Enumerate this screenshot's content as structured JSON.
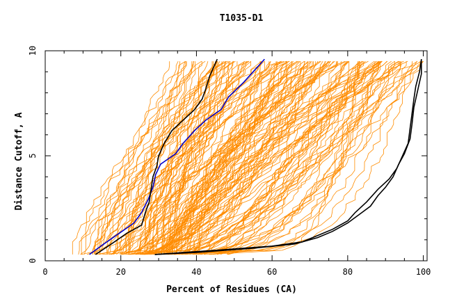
{
  "chart_data": {
    "type": "line",
    "title": "T1035-D1",
    "xlabel": "Percent of Residues (CA)",
    "ylabel": "Distance Cutoff, A",
    "xlim": [
      0,
      101
    ],
    "ylim": [
      0,
      10
    ],
    "x_ticks": [
      0,
      20,
      40,
      60,
      80,
      100
    ],
    "y_ticks": [
      0,
      5,
      10
    ],
    "grid": false,
    "legend": "none",
    "background_series": {
      "name": "",
      "color": "#ff8c00",
      "count": 160,
      "description_values": "GDT curves of all models spanning x from about 5 to 100 and y from 0.3 to 9.6"
    },
    "series": [
      {
        "name": "",
        "color": "#0000cc",
        "x": [
          11.7,
          15.5,
          19.5,
          23.5,
          25.5,
          27.2,
          28.5,
          29.2,
          30.5,
          34.5,
          36.5,
          39.5,
          42.5,
          46.5,
          48.5,
          52.5,
          55.5,
          58.0
        ],
        "y": [
          0.3,
          0.8,
          1.3,
          1.8,
          2.3,
          2.9,
          3.5,
          4.1,
          4.6,
          5.1,
          5.6,
          6.2,
          6.7,
          7.2,
          7.8,
          8.5,
          9.1,
          9.6
        ]
      },
      {
        "name": "",
        "color": "#000000",
        "x": [
          13.3,
          17.5,
          21.5,
          25.5,
          26.5,
          27.5,
          28.0,
          28.5,
          29.5,
          30.0,
          31.5,
          33.5,
          36.5,
          39.5,
          41.5,
          42.5,
          43.5,
          44.5,
          45.5
        ],
        "y": [
          0.3,
          0.8,
          1.3,
          1.7,
          2.3,
          2.8,
          3.4,
          4.0,
          4.5,
          5.0,
          5.6,
          6.2,
          6.7,
          7.2,
          7.7,
          8.2,
          8.8,
          9.2,
          9.6
        ]
      },
      {
        "name": "",
        "color": "#000000",
        "x": [
          29.0,
          40.0,
          55.0,
          66.0,
          72.0,
          76.0,
          80.0,
          83.0,
          86.0,
          88.0,
          90.0,
          92.0,
          93.5,
          95.0,
          96.5,
          97.0,
          97.5,
          98.5,
          99.5,
          99.5
        ],
        "y": [
          0.3,
          0.4,
          0.6,
          0.8,
          1.1,
          1.4,
          1.8,
          2.2,
          2.6,
          3.1,
          3.5,
          4.0,
          4.6,
          5.1,
          5.8,
          6.5,
          7.3,
          8.1,
          8.9,
          9.6
        ]
      },
      {
        "name": "",
        "color": "#000000",
        "x": [
          29.0,
          45.0,
          60.0,
          68.0,
          72.0,
          76.0,
          80.0,
          82.0,
          85.0,
          88.0,
          91.0,
          93.0,
          94.5,
          96.0,
          96.5,
          97.0,
          97.5,
          98.0,
          99.0,
          99.5
        ],
        "y": [
          0.3,
          0.5,
          0.7,
          0.9,
          1.2,
          1.5,
          1.9,
          2.3,
          2.8,
          3.4,
          3.9,
          4.4,
          5.0,
          5.6,
          6.3,
          7.0,
          7.7,
          8.3,
          9.0,
          9.6
        ]
      }
    ]
  }
}
